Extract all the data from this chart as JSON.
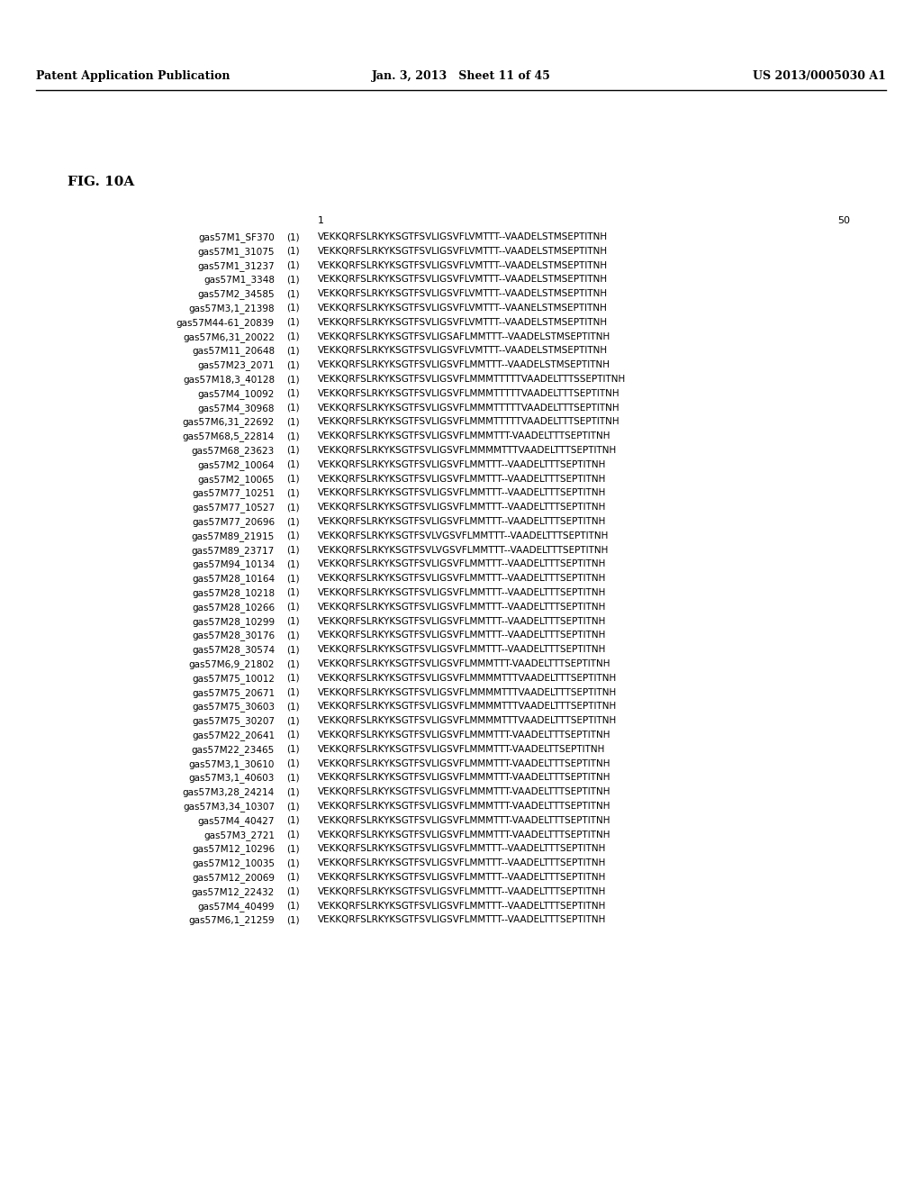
{
  "header_left": "Patent Application Publication",
  "header_center": "Jan. 3, 2013   Sheet 11 of 45",
  "header_right": "US 2013/0005030 A1",
  "fig_label": "FIG. 10A",
  "col_num_1": "1",
  "col_num_50": "50",
  "background_color": "#ffffff",
  "rows": [
    {
      "label": "gas57M1_SF370",
      "num": "(1)",
      "seq": "VEKKQRFSLRKYKSGTFSVLIGSVFLVMTTT--VAADELSTMSEPTITNH"
    },
    {
      "label": "gas57M1_31075",
      "num": "(1)",
      "seq": "VEKKQRFSLRKYKSGTFSVLIGSVFLVMTTT--VAADELSTMSEPTITNH"
    },
    {
      "label": "gas57M1_31237",
      "num": "(1)",
      "seq": "VEKKQRFSLRKYKSGTFSVLIGSVFLVMTTT--VAADELSTMSEPTITNH"
    },
    {
      "label": "gas57M1_3348",
      "num": "(1)",
      "seq": "VEKKQRFSLRKYKSGTFSVLIGSVFLVMTTT--VAADELSTMSEPTITNH"
    },
    {
      "label": "gas57M2_34585",
      "num": "(1)",
      "seq": "VEKKQRFSLRKYKSGTFSVLIGSVFLVMTTT--VAADELSTMSEPTITNH"
    },
    {
      "label": "gas57M3,1_21398",
      "num": "(1)",
      "seq": "VEKKQRFSLRKYKSGTFSVLIGSVFLVMTTT--VAANELSTMSEPTITNH"
    },
    {
      "label": "gas57M44-61_20839",
      "num": "(1)",
      "seq": "VEKKQRFSLRKYKSGTFSVLIGSVFLVMTTT--VAADELSTMSEPTITNH"
    },
    {
      "label": "gas57M6,31_20022",
      "num": "(1)",
      "seq": "VEKKQRFSLRKYKSGTFSVLIGSAFLMMTTT--VAADELSTMSEPTITNH"
    },
    {
      "label": "gas57M11_20648",
      "num": "(1)",
      "seq": "VEKKQRFSLRKYKSGTFSVLIGSVFLVMTTT--VAADELSTMSEPTITNH"
    },
    {
      "label": "gas57M23_2071",
      "num": "(1)",
      "seq": "VEKKQRFSLRKYKSGTFSVLIGSVFLMMTTT--VAADELSTMSEPTITNH"
    },
    {
      "label": "gas57M18,3_40128",
      "num": "(1)",
      "seq": "VEKKQRFSLRKYKSGTFSVLIGSVFLMMMTTTTTVAADELTTTSSEPTITNH"
    },
    {
      "label": "gas57M4_10092",
      "num": "(1)",
      "seq": "VEKKQRFSLRKYKSGTFSVLIGSVFLMMMTTTTTVAADELTTTSEPTITNH"
    },
    {
      "label": "gas57M4_30968",
      "num": "(1)",
      "seq": "VEKKQRFSLRKYKSGTFSVLIGSVFLMMMTTTTTVAADELTTTSEPTITNH"
    },
    {
      "label": "gas57M6,31_22692",
      "num": "(1)",
      "seq": "VEKKQRFSLRKYKSGTFSVLIGSVFLMMMTTTTTVAADELTTTSEPTITNH"
    },
    {
      "label": "gas57M68,5_22814",
      "num": "(1)",
      "seq": "VEKKQRFSLRKYKSGTFSVLIGSVFLMMMTTT-VAADELTTTSEPTITNH"
    },
    {
      "label": "gas57M68_23623",
      "num": "(1)",
      "seq": "VEKKQRFSLRKYKSGTFSVLIGSVFLMMMMTTTVAADELTTTSEPTITNH"
    },
    {
      "label": "gas57M2_10064",
      "num": "(1)",
      "seq": "VEKKQRFSLRKYKSGTFSVLIGSVFLMMTTT--VAADELTTTSEPTITNH"
    },
    {
      "label": "gas57M2_10065",
      "num": "(1)",
      "seq": "VEKKQRFSLRKYKSGTFSVLIGSVFLMMTTT--VAADELTTTSEPTITNH"
    },
    {
      "label": "gas57M77_10251",
      "num": "(1)",
      "seq": "VEKKQRFSLRKYKSGTFSVLIGSVFLMMTTT--VAADELTTTSEPTITNH"
    },
    {
      "label": "gas57M77_10527",
      "num": "(1)",
      "seq": "VEKKQRFSLRKYKSGTFSVLIGSVFLMMTTT--VAADELTTTSEPTITNH"
    },
    {
      "label": "gas57M77_20696",
      "num": "(1)",
      "seq": "VEKKQRFSLRKYKSGTFSVLIGSVFLMMTTT--VAADELTTTSEPTITNH"
    },
    {
      "label": "gas57M89_21915",
      "num": "(1)",
      "seq": "VEKKQRFSLRKYKSGTFSVLVGSVFLMMTTT--VAADELTTTSEPTITNH"
    },
    {
      "label": "gas57M89_23717",
      "num": "(1)",
      "seq": "VEKKQRFSLRKYKSGTFSVLVGSVFLMMTTT--VAADELTTTSEPTITNH"
    },
    {
      "label": "gas57M94_10134",
      "num": "(1)",
      "seq": "VEKKQRFSLRKYKSGTFSVLIGSVFLMMTTT--VAADELTTTSEPTITNH"
    },
    {
      "label": "gas57M28_10164",
      "num": "(1)",
      "seq": "VEKKQRFSLRKYKSGTFSVLIGSVFLMMTTT--VAADELTTTSEPTITNH"
    },
    {
      "label": "gas57M28_10218",
      "num": "(1)",
      "seq": "VEKKQRFSLRKYKSGTFSVLIGSVFLMMTTT--VAADELTTTSEPTITNH"
    },
    {
      "label": "gas57M28_10266",
      "num": "(1)",
      "seq": "VEKKQRFSLRKYKSGTFSVLIGSVFLMMTTT--VAADELTTTSEPTITNH"
    },
    {
      "label": "gas57M28_10299",
      "num": "(1)",
      "seq": "VEKKQRFSLRKYKSGTFSVLIGSVFLMMTTT--VAADELTTTSEPTITNH"
    },
    {
      "label": "gas57M28_30176",
      "num": "(1)",
      "seq": "VEKKQRFSLRKYKSGTFSVLIGSVFLMMTTT--VAADELTTTSEPTITNH"
    },
    {
      "label": "gas57M28_30574",
      "num": "(1)",
      "seq": "VEKKQRFSLRKYKSGTFSVLIGSVFLMMTTT--VAADELTTTSEPTITNH"
    },
    {
      "label": "gas57M6,9_21802",
      "num": "(1)",
      "seq": "VEKKQRFSLRKYKSGTFSVLIGSVFLMMMTTT-VAADELTTTSEPTITNH"
    },
    {
      "label": "gas57M75_10012",
      "num": "(1)",
      "seq": "VEKKQRFSLRKYKSGTFSVLIGSVFLMMMMTTTVAADELTTTSEPTITNH"
    },
    {
      "label": "gas57M75_20671",
      "num": "(1)",
      "seq": "VEKKQRFSLRKYKSGTFSVLIGSVFLMMMMTTTVAADELTTTSEPTITNH"
    },
    {
      "label": "gas57M75_30603",
      "num": "(1)",
      "seq": "VEKKQRFSLRKYKSGTFSVLIGSVFLMMMMTTTVAADELTTTSEPTITNH"
    },
    {
      "label": "gas57M75_30207",
      "num": "(1)",
      "seq": "VEKKQRFSLRKYKSGTFSVLIGSVFLMMMMTTTVAADELTTTSEPTITNH"
    },
    {
      "label": "gas57M22_20641",
      "num": "(1)",
      "seq": "VEKKQRFSLRKYKSGTFSVLIGSVFLMMMTTT-VAADELTTTSEPTITNH"
    },
    {
      "label": "gas57M22_23465",
      "num": "(1)",
      "seq": "VEKKQRFSLRKYKSGTFSVLIGSVFLMMMTTT-VAADELTTSEPTITNH"
    },
    {
      "label": "gas57M3,1_30610",
      "num": "(1)",
      "seq": "VEKKQRFSLRKYKSGTFSVLIGSVFLMMMTTT-VAADELTTTSEPTITNH"
    },
    {
      "label": "gas57M3,1_40603",
      "num": "(1)",
      "seq": "VEKKQRFSLRKYKSGTFSVLIGSVFLMMMTTT-VAADELTTTSEPTITNH"
    },
    {
      "label": "gas57M3,28_24214",
      "num": "(1)",
      "seq": "VEKKQRFSLRKYKSGTFSVLIGSVFLMMMTTT-VAADELTTTSEPTITNH"
    },
    {
      "label": "gas57M3,34_10307",
      "num": "(1)",
      "seq": "VEKKQRFSLRKYKSGTFSVLIGSVFLMMMTTT-VAADELTTTSEPTITNH"
    },
    {
      "label": "gas57M4_40427",
      "num": "(1)",
      "seq": "VEKKQRFSLRKYKSGTFSVLIGSVFLMMMTTT-VAADELTTTSEPTITNH"
    },
    {
      "label": "gas57M3_2721",
      "num": "(1)",
      "seq": "VEKKQRFSLRKYKSGTFSVLIGSVFLMMMTTT-VAADELTTTSEPTITNH"
    },
    {
      "label": "gas57M12_10296",
      "num": "(1)",
      "seq": "VEKKQRFSLRKYKSGTFSVLIGSVFLMMTTT--VAADELTTTSEPTITNH"
    },
    {
      "label": "gas57M12_10035",
      "num": "(1)",
      "seq": "VEKKQRFSLRKYKSGTFSVLIGSVFLMMTTT--VAADELTTTSEPTITNH"
    },
    {
      "label": "gas57M12_20069",
      "num": "(1)",
      "seq": "VEKKQRFSLRKYKSGTFSVLIGSVFLMMTTT--VAADELTTTSEPTITNH"
    },
    {
      "label": "gas57M12_22432",
      "num": "(1)",
      "seq": "VEKKQRFSLRKYKSGTFSVLIGSVFLMMTTT--VAADELTTTSEPTITNH"
    },
    {
      "label": "gas57M4_40499",
      "num": "(1)",
      "seq": "VEKKQRFSLRKYKSGTFSVLIGSVFLMMTTT--VAADELTTTSEPTITNH"
    },
    {
      "label": "gas57M6,1_21259",
      "num": "(1)",
      "seq": "VEKKQRFSLRKYKSGTFSVLIGSVFLMMTTT--VAADELTTTSEPTITNH"
    }
  ]
}
